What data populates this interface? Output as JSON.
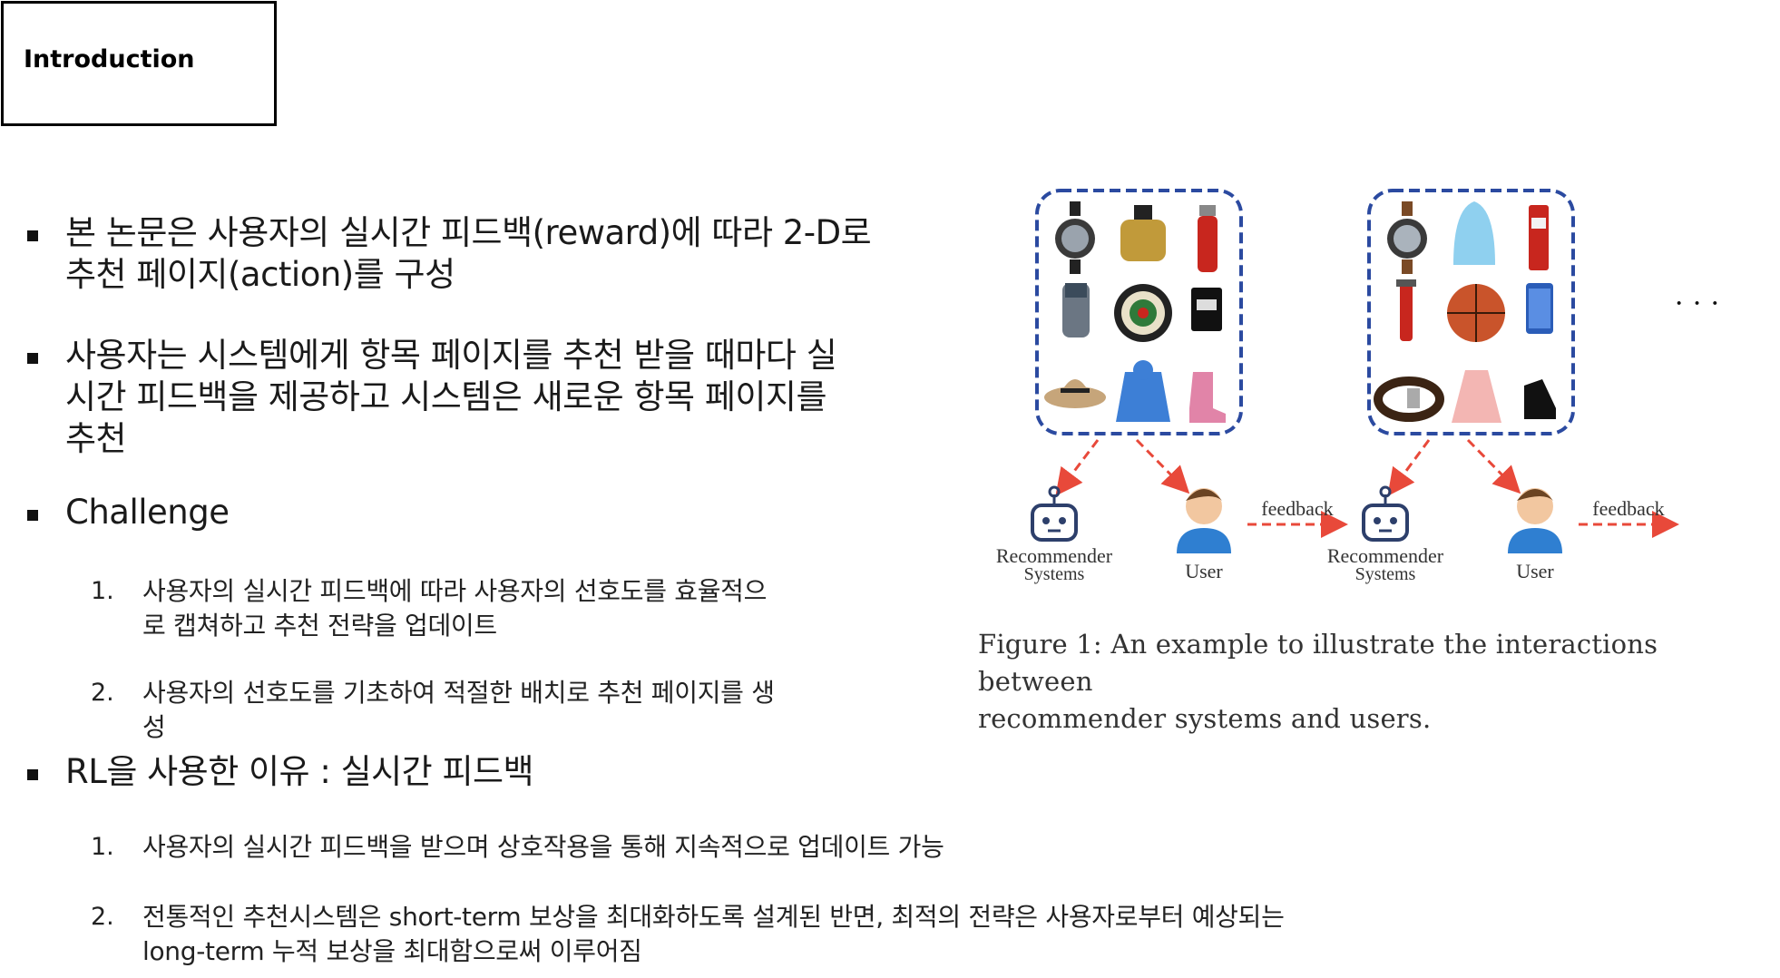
{
  "header": {
    "title": "Introduction"
  },
  "bullets": [
    {
      "lines": [
        "본 논문은 사용자의 실시간 피드백(reward)에 따라 2-D로",
        "추천 페이지(action)를 구성"
      ]
    },
    {
      "lines": [
        "사용자는 시스템에게 항목 페이지를 추천 받을 때마다 실",
        "시간 피드백을 제공하고 시스템은 새로운 항목 페이지를",
        "추천"
      ]
    },
    {
      "lines": [
        "Challenge"
      ]
    },
    {
      "lines": [
        "RL을 사용한 이유 : 실시간 피드백"
      ]
    }
  ],
  "challenge_items": [
    {
      "num": "1.",
      "lines": [
        "사용자의 실시간 피드백에 따라 사용자의 선호도를 효율적으",
        "로 캡쳐하고 추천 전략을 업데이트"
      ]
    },
    {
      "num": "2.",
      "lines": [
        "사용자의 선호도를 기초하여 적절한 배치로 추천 페이지를 생",
        "성"
      ]
    }
  ],
  "rl_items": [
    {
      "num": "1.",
      "lines": [
        "사용자의 실시간 피드백을 받으며 상호작용을 통해 지속적으로 업데이트 가능"
      ]
    },
    {
      "num": "2.",
      "lines": [
        "전통적인 추천시스템은 short-term 보상을 최대화하도록 설계된 반면, 최적의 전략은 사용자로부터 예상되는",
        "long-term 누적 보상을 최대함으로써 이루어짐"
      ]
    }
  ],
  "figure": {
    "recommender_label_1": "Recommender",
    "recommender_label_2": "Systems",
    "user_label": "User",
    "feedback_label": "feedback",
    "ellipsis": "· · ·",
    "colors": {
      "box_border": "#2b4aa0",
      "arrow": "#e8493a",
      "robot": "#2d3f6b",
      "user_shirt": "#2f7fd1"
    },
    "page1_items": [
      "watch-icon",
      "perfume-icon",
      "bottle-icon",
      "shaver-icon",
      "dartboard-icon",
      "sdcard-icon",
      "hat-icon",
      "bathrobe-icon",
      "boot-icon"
    ],
    "page2_items": [
      "watch-icon",
      "humidifier-icon",
      "lipstick-icon",
      "shaver-icon",
      "basketball-icon",
      "phone-icon",
      "belt-icon",
      "dress-icon",
      "shoe-icon"
    ]
  },
  "caption": {
    "line1": "Figure 1: An example to illustrate the interactions between",
    "line2": "recommender systems and users."
  }
}
